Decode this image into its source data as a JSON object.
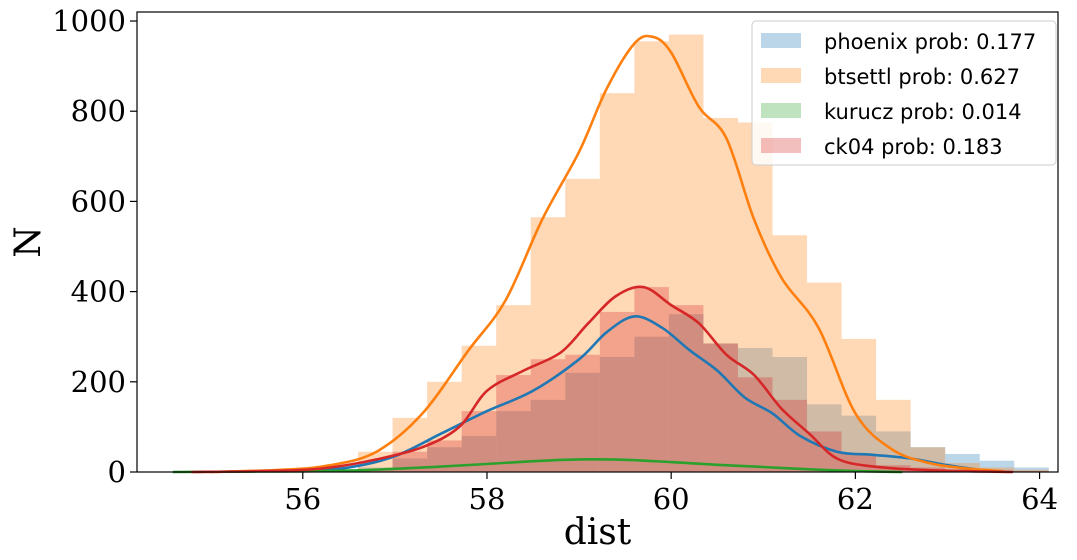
{
  "chart_data": {
    "type": "histogram",
    "xlabel": "dist",
    "ylabel": "N",
    "xlim": [
      54.2,
      64.2
    ],
    "ylim": [
      0,
      1020
    ],
    "xticks": [
      56,
      58,
      60,
      62,
      64
    ],
    "yticks": [
      0,
      200,
      400,
      600,
      800,
      1000
    ],
    "legend_position": "top-right",
    "grid": false,
    "bin_start": 56.6,
    "bin_width": 0.375,
    "series": [
      {
        "name": "phoenix prob: 0.177",
        "color": "#1f77b4",
        "alpha": 0.3,
        "bin_counts": [
          10,
          30,
          55,
          80,
          135,
          160,
          220,
          255,
          300,
          350,
          285,
          275,
          255,
          150,
          125,
          90,
          55,
          40,
          25,
          10
        ],
        "kde_x": [
          56.0,
          56.5,
          57.0,
          57.5,
          58.0,
          58.5,
          59.0,
          59.3,
          59.6,
          59.9,
          60.2,
          60.5,
          60.8,
          61.1,
          61.4,
          61.8,
          62.2,
          62.6,
          63.0,
          63.4
        ],
        "kde_y": [
          2,
          10,
          35,
          85,
          135,
          180,
          250,
          310,
          345,
          320,
          270,
          225,
          165,
          130,
          80,
          45,
          38,
          30,
          15,
          3
        ]
      },
      {
        "name": "btsettl prob: 0.627",
        "color": "#ff7f0e",
        "alpha": 0.3,
        "bin_counts": [
          45,
          120,
          200,
          280,
          370,
          565,
          650,
          840,
          955,
          970,
          785,
          775,
          525,
          420,
          295,
          160,
          55,
          20,
          10,
          5
        ],
        "kde_x": [
          55.0,
          55.8,
          56.3,
          56.8,
          57.3,
          57.8,
          58.2,
          58.6,
          59.0,
          59.3,
          59.6,
          59.8,
          60.0,
          60.3,
          60.6,
          60.9,
          61.2,
          61.6,
          62.0,
          62.4,
          62.8,
          63.2,
          63.6
        ],
        "kde_y": [
          0,
          5,
          15,
          45,
          130,
          270,
          380,
          560,
          710,
          850,
          950,
          965,
          930,
          810,
          740,
          560,
          430,
          320,
          130,
          50,
          20,
          8,
          2
        ]
      },
      {
        "name": "kurucz prob: 0.014",
        "color": "#2ca02c",
        "alpha": 0.3,
        "bin_counts": [],
        "kde_x": [
          54.6,
          55.5,
          56.5,
          57.5,
          58.5,
          59.0,
          59.5,
          60.0,
          60.5,
          61.0,
          61.5,
          62.0,
          62.5
        ],
        "kde_y": [
          0,
          1,
          3,
          12,
          24,
          28,
          27,
          22,
          16,
          11,
          6,
          2,
          0
        ]
      },
      {
        "name": "ck04 prob: 0.183",
        "color": "#d62728",
        "alpha": 0.3,
        "bin_counts": [
          5,
          45,
          70,
          135,
          215,
          250,
          260,
          355,
          410,
          370,
          285,
          210,
          160,
          90,
          40,
          15,
          10,
          5,
          3,
          2
        ],
        "kde_x": [
          54.8,
          55.8,
          56.3,
          56.8,
          57.3,
          57.7,
          58.0,
          58.4,
          58.8,
          59.1,
          59.4,
          59.7,
          60.0,
          60.3,
          60.6,
          60.9,
          61.2,
          61.5,
          61.8,
          62.2,
          62.8,
          63.7
        ],
        "kde_y": [
          0,
          3,
          10,
          28,
          55,
          100,
          180,
          225,
          265,
          330,
          390,
          410,
          370,
          330,
          260,
          215,
          140,
          85,
          30,
          12,
          4,
          0
        ]
      }
    ]
  }
}
